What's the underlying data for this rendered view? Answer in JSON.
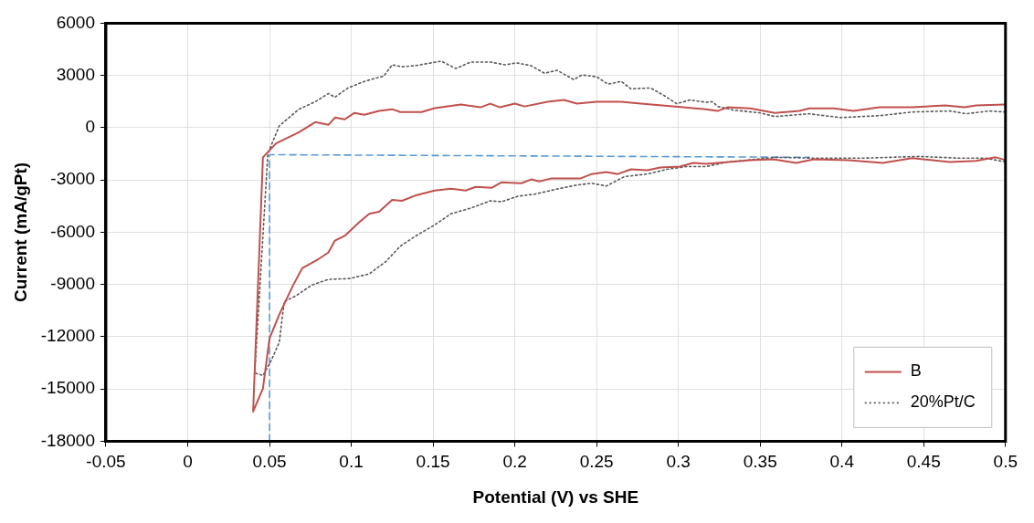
{
  "chart_data": {
    "type": "line",
    "xlabel": "Potential (V) vs SHE",
    "ylabel": "Current (mA/gPt)",
    "xlim": [
      -0.05,
      0.5
    ],
    "xticks": [
      -0.05,
      0,
      0.05,
      0.1,
      0.15,
      0.2,
      0.25,
      0.3,
      0.35,
      0.4,
      0.45,
      0.5
    ],
    "ylim": [
      -18000,
      6000
    ],
    "yticks": [
      -18000,
      -15000,
      -12000,
      -9000,
      -6000,
      -3000,
      0,
      3000,
      6000
    ],
    "grid": true,
    "legend": "bottom right",
    "marker": "none",
    "series": [
      {
        "name": "B",
        "color": "#c0504d",
        "line_style": "solid",
        "x": [
          0.5,
          0.482,
          0.475,
          0.463,
          0.443,
          0.423,
          0.407,
          0.395,
          0.38,
          0.374,
          0.359,
          0.344,
          0.33,
          0.324,
          0.317,
          0.303,
          0.277,
          0.265,
          0.25,
          0.238,
          0.23,
          0.22,
          0.206,
          0.2,
          0.191,
          0.185,
          0.179,
          0.167,
          0.151,
          0.143,
          0.13,
          0.125,
          0.117,
          0.108,
          0.102,
          0.096,
          0.09,
          0.086,
          0.078,
          0.068,
          0.054,
          0.046,
          0.04,
          0.046,
          0.05,
          0.056,
          0.064,
          0.07,
          0.08,
          0.086,
          0.09,
          0.096,
          0.105,
          0.111,
          0.117,
          0.125,
          0.131,
          0.139,
          0.151,
          0.161,
          0.17,
          0.176,
          0.186,
          0.192,
          0.204,
          0.21,
          0.215,
          0.222,
          0.24,
          0.247,
          0.256,
          0.263,
          0.271,
          0.281,
          0.289,
          0.301,
          0.309,
          0.317,
          0.324,
          0.344,
          0.358,
          0.372,
          0.383,
          0.404,
          0.425,
          0.443,
          0.466,
          0.482,
          0.494,
          0.5
        ],
        "values": [
          1330,
          1280,
          1170,
          1280,
          1170,
          1170,
          960,
          1110,
          1110,
          960,
          850,
          1110,
          1170,
          960,
          1060,
          1170,
          1380,
          1490,
          1490,
          1380,
          1590,
          1490,
          1220,
          1380,
          1170,
          1380,
          1170,
          1330,
          1120,
          900,
          900,
          1060,
          960,
          740,
          850,
          480,
          580,
          160,
          320,
          -265,
          -900,
          -1700,
          -16300,
          -14970,
          -12100,
          -10730,
          -9130,
          -8070,
          -7540,
          -7170,
          -6480,
          -6210,
          -5420,
          -4940,
          -4830,
          -4140,
          -4200,
          -3900,
          -3610,
          -3500,
          -3610,
          -3400,
          -3450,
          -3130,
          -3190,
          -2970,
          -3080,
          -2920,
          -2920,
          -2660,
          -2550,
          -2660,
          -2390,
          -2440,
          -2280,
          -2230,
          -2020,
          -2070,
          -2020,
          -1860,
          -1810,
          -2020,
          -1810,
          -1860,
          -2020,
          -1750,
          -1970,
          -1910,
          -1700,
          -1860
        ]
      },
      {
        "name": "20%Pt/C",
        "color": "#595959",
        "line_style": "dotted",
        "x": [
          0.5,
          0.49,
          0.476,
          0.466,
          0.443,
          0.423,
          0.399,
          0.38,
          0.359,
          0.35,
          0.334,
          0.324,
          0.321,
          0.317,
          0.307,
          0.299,
          0.291,
          0.283,
          0.271,
          0.265,
          0.257,
          0.25,
          0.241,
          0.236,
          0.226,
          0.218,
          0.21,
          0.201,
          0.194,
          0.185,
          0.173,
          0.164,
          0.155,
          0.139,
          0.131,
          0.125,
          0.12,
          0.108,
          0.098,
          0.09,
          0.086,
          0.078,
          0.068,
          0.056,
          0.049,
          0.041,
          0.046,
          0.051,
          0.056,
          0.059,
          0.066,
          0.076,
          0.086,
          0.099,
          0.111,
          0.121,
          0.13,
          0.139,
          0.151,
          0.161,
          0.173,
          0.185,
          0.192,
          0.202,
          0.212,
          0.224,
          0.238,
          0.247,
          0.256,
          0.267,
          0.281,
          0.293,
          0.305,
          0.317,
          0.33,
          0.36,
          0.383,
          0.413,
          0.447,
          0.472,
          0.488,
          0.5
        ],
        "values": [
          900,
          960,
          800,
          960,
          900,
          690,
          580,
          800,
          640,
          850,
          1010,
          1220,
          1490,
          1460,
          1590,
          1380,
          1860,
          2280,
          2230,
          2660,
          2500,
          2920,
          3030,
          2760,
          3290,
          3130,
          3560,
          3720,
          3610,
          3770,
          3770,
          3400,
          3820,
          3560,
          3500,
          3610,
          2970,
          2660,
          2280,
          1750,
          1960,
          1490,
          1060,
          110,
          -1490,
          -14070,
          -14230,
          -13380,
          -12320,
          -9980,
          -9660,
          -9030,
          -8710,
          -8660,
          -8390,
          -7700,
          -6800,
          -6240,
          -5580,
          -4940,
          -4620,
          -4200,
          -4250,
          -3930,
          -3820,
          -3560,
          -3290,
          -3190,
          -3350,
          -2810,
          -2660,
          -2390,
          -2230,
          -2230,
          -1970,
          -1700,
          -1750,
          -1750,
          -1650,
          -1750,
          -1750,
          -1970
        ]
      },
      {
        "color": "#5b9bd5",
        "line_style": "dashed",
        "x": [
          0.05,
          0.05,
          0.38
        ],
        "values": [
          -18000,
          -1550,
          -1700
        ]
      }
    ]
  }
}
